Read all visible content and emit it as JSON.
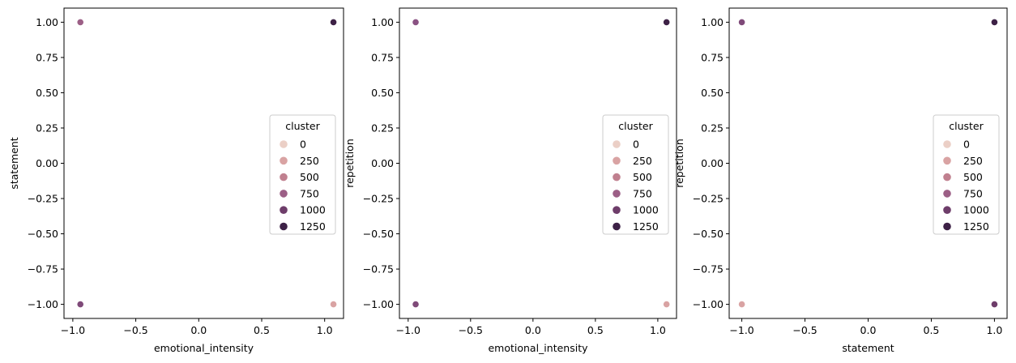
{
  "chart_data": [
    {
      "type": "scatter",
      "xlabel": "emotional_intensity",
      "ylabel": "statement",
      "xlim": [
        -1.07,
        1.15
      ],
      "ylim": [
        -1.1,
        1.1
      ],
      "xticks": [
        -1.0,
        -0.5,
        0.0,
        0.5,
        1.0
      ],
      "xtick_labels": [
        "−1.0",
        "−0.5",
        "0.0",
        "0.5",
        "1.0"
      ],
      "yticks": [
        1.0,
        0.75,
        0.5,
        0.25,
        0.0,
        -0.25,
        -0.5,
        -0.75,
        -1.0
      ],
      "ytick_labels": [
        "1.00",
        "0.75",
        "0.50",
        "0.25",
        "0.00",
        "−0.25",
        "−0.50",
        "−0.75",
        "−1.00"
      ],
      "grid": false,
      "legend": {
        "title": "cluster",
        "placement": "center-right",
        "entries": [
          {
            "label": "0",
            "color": "#ebcfc6"
          },
          {
            "label": "250",
            "color": "#d9a3a3"
          },
          {
            "label": "500",
            "color": "#c0808f"
          },
          {
            "label": "750",
            "color": "#9c5f86"
          },
          {
            "label": "1000",
            "color": "#6e3d6a"
          },
          {
            "label": "1250",
            "color": "#3d2146"
          }
        ]
      },
      "points": [
        {
          "x": -0.94,
          "y": 1.0,
          "color": "#9c5f86"
        },
        {
          "x": 1.07,
          "y": 1.0,
          "color": "#3d2146"
        },
        {
          "x": -0.94,
          "y": -1.0,
          "color": "#7f4a79"
        },
        {
          "x": 1.07,
          "y": -1.0,
          "color": "#d9a3a3"
        }
      ]
    },
    {
      "type": "scatter",
      "xlabel": "emotional_intensity",
      "ylabel": "repetition",
      "xlim": [
        -1.07,
        1.15
      ],
      "ylim": [
        -1.1,
        1.1
      ],
      "xticks": [
        -1.0,
        -0.5,
        0.0,
        0.5,
        1.0
      ],
      "xtick_labels": [
        "−1.0",
        "−0.5",
        "0.0",
        "0.5",
        "1.0"
      ],
      "yticks": [
        1.0,
        0.75,
        0.5,
        0.25,
        0.0,
        -0.25,
        -0.5,
        -0.75,
        -1.0
      ],
      "ytick_labels": [
        "1.00",
        "0.75",
        "0.50",
        "0.25",
        "0.00",
        "−0.25",
        "−0.50",
        "−0.75",
        "−1.00"
      ],
      "grid": false,
      "legend": {
        "title": "cluster",
        "placement": "center-right",
        "entries": [
          {
            "label": "0",
            "color": "#ebcfc6"
          },
          {
            "label": "250",
            "color": "#d9a3a3"
          },
          {
            "label": "500",
            "color": "#c0808f"
          },
          {
            "label": "750",
            "color": "#9c5f86"
          },
          {
            "label": "1000",
            "color": "#6e3d6a"
          },
          {
            "label": "1250",
            "color": "#3d2146"
          }
        ]
      },
      "points": [
        {
          "x": -0.94,
          "y": 1.0,
          "color": "#8a5283"
        },
        {
          "x": 1.07,
          "y": 1.0,
          "color": "#3d2146"
        },
        {
          "x": -0.94,
          "y": -1.0,
          "color": "#7f4a79"
        },
        {
          "x": 1.07,
          "y": -1.0,
          "color": "#d9a3a3"
        }
      ]
    },
    {
      "type": "scatter",
      "xlabel": "statement",
      "ylabel": "repetition",
      "xlim": [
        -1.1,
        1.1
      ],
      "ylim": [
        -1.1,
        1.1
      ],
      "xticks": [
        -1.0,
        -0.5,
        0.0,
        0.5,
        1.0
      ],
      "xtick_labels": [
        "−1.0",
        "−0.5",
        "0.0",
        "0.5",
        "1.0"
      ],
      "yticks": [
        1.0,
        0.75,
        0.5,
        0.25,
        0.0,
        -0.25,
        -0.5,
        -0.75,
        -1.0
      ],
      "ytick_labels": [
        "1.00",
        "0.75",
        "0.50",
        "0.25",
        "0.00",
        "−0.25",
        "−0.50",
        "−0.75",
        "−1.00"
      ],
      "grid": false,
      "legend": {
        "title": "cluster",
        "placement": "center-right",
        "entries": [
          {
            "label": "0",
            "color": "#ebcfc6"
          },
          {
            "label": "250",
            "color": "#d9a3a3"
          },
          {
            "label": "500",
            "color": "#c0808f"
          },
          {
            "label": "750",
            "color": "#9c5f86"
          },
          {
            "label": "1000",
            "color": "#6e3d6a"
          },
          {
            "label": "1250",
            "color": "#3d2146"
          }
        ]
      },
      "points": [
        {
          "x": -1.0,
          "y": 1.0,
          "color": "#7f4a79"
        },
        {
          "x": 1.0,
          "y": 1.0,
          "color": "#3d2146"
        },
        {
          "x": -1.0,
          "y": -1.0,
          "color": "#d9a3a3"
        },
        {
          "x": 1.0,
          "y": -1.0,
          "color": "#6e3d6a"
        }
      ]
    }
  ]
}
